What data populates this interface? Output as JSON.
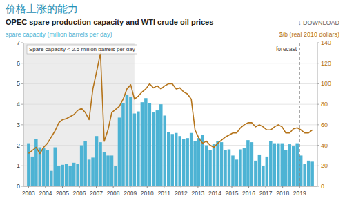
{
  "chart_data": {
    "type": "bar",
    "title": "价格上涨的能力",
    "subtitle": "OPEC spare production capacity and WTI crude oil prices",
    "y_label": "spare capacity (million barrels per day)",
    "y2_label": "$/b (real 2010 dollars)",
    "annotations": [
      "Spare capacity < 2.5 million barrels per day",
      "forecast",
      "↓ DOWNLOAD"
    ],
    "shade_end": 2009.25,
    "forecast_start": 2019.0,
    "grid": true,
    "x": [
      2003,
      2003.223333,
      2003.446667,
      2003.67,
      2003.893333,
      2004.116667,
      2004.34,
      2004.563333,
      2004.786667,
      2005.01,
      2005.233333,
      2005.456667,
      2005.68,
      2005.903333,
      2006.126667,
      2006.35,
      2006.573333,
      2006.796667,
      2007.02,
      2007.243333,
      2007.466667,
      2007.69,
      2007.913333,
      2008.136667,
      2008.36,
      2008.583333,
      2008.806667,
      2009.03,
      2009.253333,
      2009.476667,
      2009.7,
      2009.923333,
      2010.146667,
      2010.37,
      2010.593333,
      2010.816667,
      2011.04,
      2011.263333,
      2011.486667,
      2011.71,
      2011.933333,
      2012.156667,
      2012.38,
      2012.603333,
      2012.826667,
      2013.05,
      2013.273333,
      2013.496667,
      2013.72,
      2013.943333,
      2014.166667,
      2014.39,
      2014.613333,
      2014.836667,
      2015.06,
      2015.283333,
      2015.506667,
      2015.73,
      2015.953333,
      2016.176667,
      2016.4,
      2016.623333,
      2016.846667,
      2017.07,
      2017.293333,
      2017.516667,
      2017.74,
      2017.963333,
      2018.186667,
      2018.41,
      2018.633333,
      2018.856667,
      2019.08,
      2019.303333,
      2019.526667,
      2019.75
    ],
    "xlim": [
      2002.7,
      2020.05
    ],
    "xticks": [
      2003,
      2004,
      2005,
      2006,
      2007,
      2008,
      2009,
      2010,
      2011,
      2012,
      2013,
      2014,
      2015,
      2016,
      2017,
      2018,
      2019
    ],
    "ylim": [
      0,
      7
    ],
    "yticks": [
      0,
      1,
      2,
      3,
      4,
      5,
      6,
      7
    ],
    "y2lim": [
      0,
      140
    ],
    "y2ticks": [
      0,
      20,
      40,
      60,
      80,
      100,
      120,
      140
    ],
    "series": [
      {
        "type": "bar",
        "color": "#4db3d4",
        "values": [
          2.1,
          1.45,
          2.3,
          1.9,
          1.85,
          1.75,
          0.75,
          1.9,
          1.0,
          1.05,
          1.1,
          1.0,
          1.15,
          1.1,
          2.0,
          2.2,
          1.3,
          1.4,
          2.45,
          2.15,
          1.65,
          1.5,
          1.5,
          1.0,
          3.35,
          4.05,
          4.45,
          4.35,
          3.55,
          3.65,
          4.1,
          4.3,
          4.05,
          3.6,
          3.7,
          4.0,
          3.45,
          2.65,
          2.55,
          2.6,
          2.45,
          2.3,
          2.35,
          2.6,
          2.2,
          2.35,
          2.5,
          2.0,
          1.75,
          2.05,
          2.2,
          2.15,
          1.75,
          1.8,
          1.5,
          1.3,
          1.8,
          1.85,
          2.25,
          2.15,
          1.25,
          1.55,
          1.0,
          1.45,
          2.2,
          2.1,
          2.1,
          2.1,
          1.75,
          2.05,
          1.95,
          2.1,
          1.5,
          1.1,
          1.25,
          1.2
        ]
      },
      {
        "type": "line",
        "axis": "y2",
        "color": "#b5741a",
        "values": [
          32,
          35,
          38,
          32,
          38,
          42,
          48,
          54,
          62,
          65,
          66,
          68,
          70,
          74,
          76,
          72,
          65,
          95,
          112,
          130,
          44,
          55,
          72,
          75,
          78,
          85,
          95,
          99,
          85,
          88,
          92,
          95,
          100,
          96,
          98,
          95,
          98,
          100,
          100,
          95,
          96,
          92,
          90,
          85,
          55,
          47,
          42,
          44,
          40,
          38,
          42,
          45,
          48,
          50,
          52,
          52,
          57,
          60,
          62,
          62,
          58,
          60,
          58,
          55,
          55,
          58,
          60,
          58,
          52,
          52,
          56,
          57,
          55,
          52,
          52,
          55
        ]
      }
    ]
  }
}
